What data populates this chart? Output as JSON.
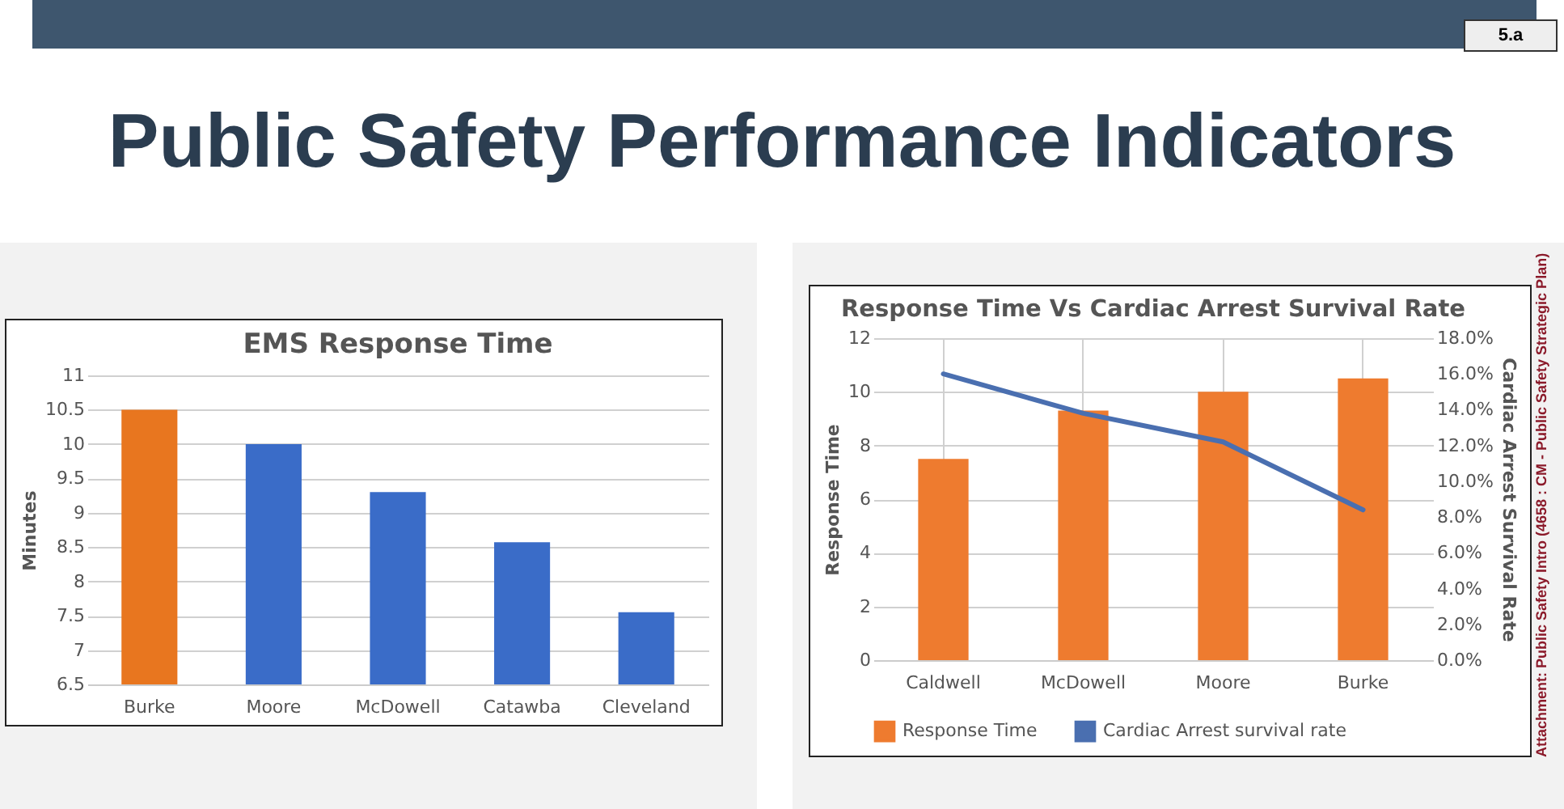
{
  "chart_data": [
    {
      "type": "bar",
      "title": "EMS Response Time",
      "ylabel": "Minutes",
      "categories": [
        "Burke",
        "Moore",
        "McDowell",
        "Catawba",
        "Cleveland"
      ],
      "values": [
        10.5,
        10,
        9.3,
        8.57,
        7.55
      ],
      "colors": [
        "#e8761f",
        "#3a6cc8",
        "#3a6cc8",
        "#3a6cc8",
        "#3a6cc8"
      ],
      "ylim": [
        6.5,
        11
      ],
      "yticks": [
        6.5,
        7,
        7.5,
        8,
        8.5,
        9,
        9.5,
        10,
        10.5,
        11
      ],
      "grid": "y",
      "legend": false,
      "annotations": [
        "Public Safety Performance Indicators",
        "5.a",
        "Attachment: Public Safety Intro  (4658 : CM - Public Safety Strategic Plan)"
      ]
    },
    {
      "type": "bar",
      "title": "Response Time Vs Cardiac Arrest Survival Rate",
      "ylabel": "Response Time",
      "y2label": "Cardiac Arrest Survival Rate",
      "categories": [
        "Caldwell",
        "McDowell",
        "Moore",
        "Burke"
      ],
      "series": [
        {
          "name": "Response Time",
          "type": "bar",
          "color": "#ee7b2f",
          "values": [
            7.5,
            9.3,
            10,
            10.5
          ]
        },
        {
          "name": "Cardiac Arrest survival rate",
          "type": "line",
          "axis": "y2",
          "color": "#4a6fb0",
          "values": [
            16,
            13.8,
            12.2,
            8.4
          ]
        }
      ],
      "ylim": [
        0,
        12
      ],
      "yticks": [
        0,
        2,
        4,
        6,
        8,
        10,
        12
      ],
      "y2lim": [
        0,
        18
      ],
      "y2ticks": [
        {
          "value": 0,
          "label": "0.0%"
        },
        {
          "value": 2,
          "label": "2.0%"
        },
        {
          "value": 4,
          "label": "4.0%"
        },
        {
          "value": 6,
          "label": "6.0%"
        },
        {
          "value": 8,
          "label": "8.0%"
        },
        {
          "value": 10,
          "label": "10.0%"
        },
        {
          "value": 12,
          "label": "12.0%"
        },
        {
          "value": 14,
          "label": "14.0%"
        },
        {
          "value": 16,
          "label": "16.0%"
        },
        {
          "value": 18,
          "label": "18.0%"
        }
      ],
      "grid": true,
      "legend": "bottom",
      "marker": "none",
      "line_style": "solid"
    }
  ]
}
